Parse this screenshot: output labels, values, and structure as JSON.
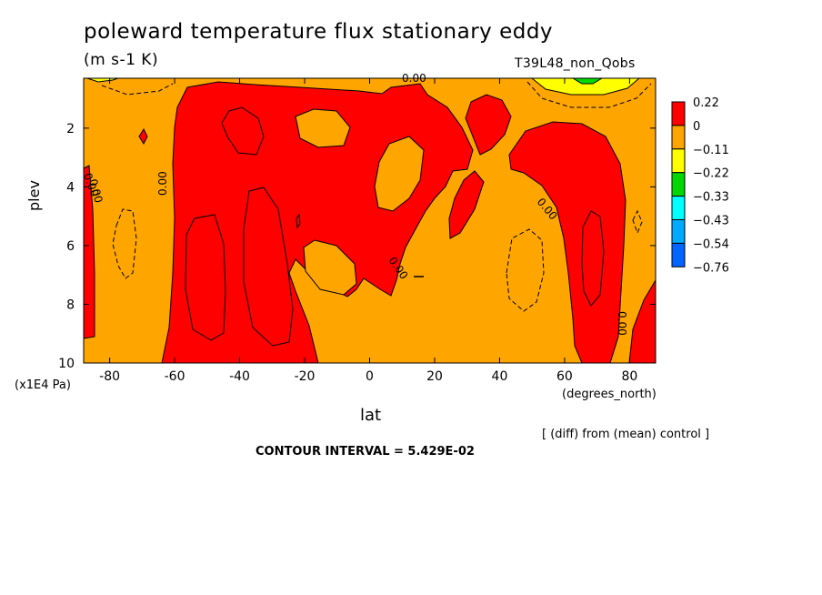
{
  "title": "poleward temperature flux stationary eddy",
  "units": "(m s-1 K)",
  "run_label": "T39L48_non_Qobs",
  "y_axis_label": "plev",
  "y_axis_unit": "(x1E4 Pa)",
  "x_axis_label": "lat",
  "x_axis_unit": "(degrees_north)",
  "diff_note": "[ (diff) from (mean) control ]",
  "contour_interval_text": "CONTOUR INTERVAL = 5.429E-02",
  "chart_data": {
    "type": "heatmap",
    "title": "poleward temperature flux stationary eddy",
    "xlabel": "lat",
    "ylabel": "plev",
    "xlim": [
      -88,
      88
    ],
    "ylim": [
      0.3,
      10
    ],
    "y_inverted": true,
    "x_ticks": [
      "-80",
      "-60",
      "-40",
      "-20",
      "0",
      "20",
      "40",
      "60",
      "80"
    ],
    "x_tick_values": [
      -80,
      -60,
      -40,
      -20,
      0,
      20,
      40,
      60,
      80
    ],
    "y_ticks": [
      "2",
      "4",
      "6",
      "8",
      "10"
    ],
    "y_tick_values": [
      2,
      4,
      6,
      8,
      10
    ],
    "contour_interval": 0.05429,
    "contour_labels": [
      "0.00",
      "0.00",
      "0.00",
      "0.00",
      "0.00",
      "0.00",
      "0.00"
    ],
    "colorbar": {
      "labels": [
        "0.22",
        "0",
        "−0.11",
        "−0.22",
        "−0.33",
        "−0.43",
        "−0.54",
        "−0.76"
      ],
      "colors": [
        "#ff0000",
        "#ffa500",
        "#ffff00",
        "#00d800",
        "#00ffff",
        "#00aaff",
        "#0064ff"
      ]
    },
    "colors": {
      "positive": "#ff0000",
      "near_zero": "#ffa500",
      "neg1": "#ffff00",
      "neg2": "#00d800"
    }
  }
}
